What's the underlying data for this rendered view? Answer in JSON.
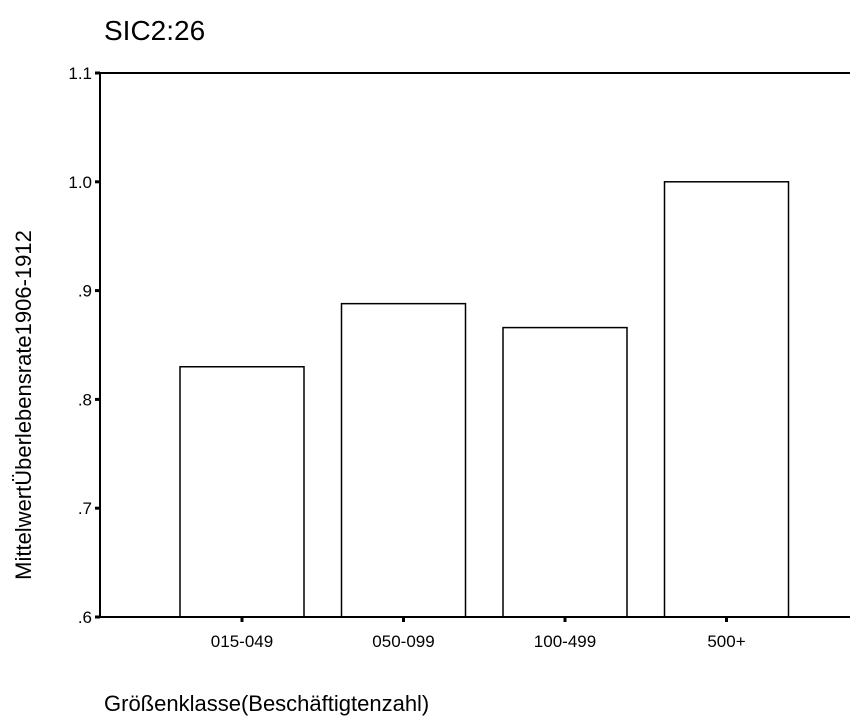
{
  "chart_data": {
    "type": "bar",
    "title": "SIC2:26",
    "xlabel": "Größenklasse(Beschäftigtenzahl)",
    "ylabel": "MittelwertÜberlebensrate1906-1912",
    "categories": [
      "015-049",
      "050-099",
      "100-499",
      "500+"
    ],
    "values": [
      0.83,
      0.888,
      0.866,
      1.0
    ],
    "ylim": [
      0.6,
      1.1
    ],
    "yticks": [
      {
        "value": 0.6,
        "label": ".6"
      },
      {
        "value": 0.7,
        "label": ".7"
      },
      {
        "value": 0.8,
        "label": ".8"
      },
      {
        "value": 0.9,
        "label": ".9"
      },
      {
        "value": 1.0,
        "label": "1.0"
      },
      {
        "value": 1.1,
        "label": "1.1"
      }
    ],
    "grid": false,
    "legend": "none",
    "colors": {
      "bar_fill": "#ffffff",
      "bar_stroke": "#000000",
      "axis": "#000000"
    }
  }
}
